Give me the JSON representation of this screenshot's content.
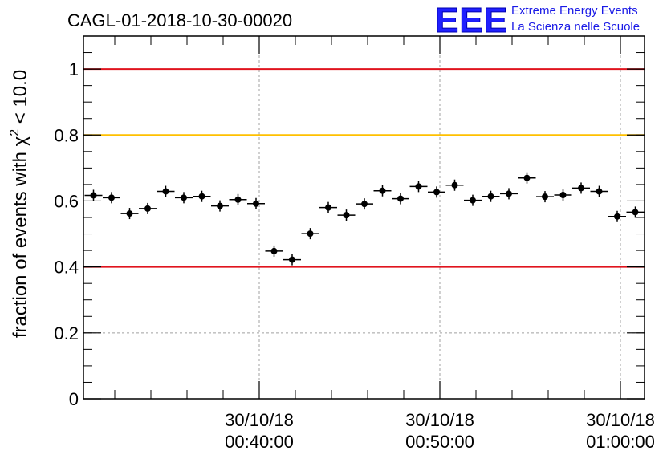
{
  "chart_data": {
    "type": "scatter",
    "title": "CAGL-01-2018-10-30-00020",
    "ylabel": "fraction of events with χ",
    "ylabel_sup": "2",
    "ylabel_tail": " < 10.0",
    "xlabel": "",
    "ylim": [
      0,
      1.1
    ],
    "yticks": [
      "0",
      "0.2",
      "0.4",
      "0.6",
      "0.8",
      "1"
    ],
    "xticks": [
      {
        "date": "30/10/18",
        "time": "00:40:00"
      },
      {
        "date": "30/10/18",
        "time": "00:50:00"
      },
      {
        "date": "30/10/18",
        "time": "01:00:00"
      }
    ],
    "grid": true,
    "reference_lines": [
      {
        "y": 1.0,
        "color": "#e0141e"
      },
      {
        "y": 0.8,
        "color": "#ffc000"
      },
      {
        "y": 0.4,
        "color": "#e0141e"
      }
    ],
    "points": [
      0.617,
      0.61,
      0.562,
      0.577,
      0.629,
      0.61,
      0.614,
      0.585,
      0.604,
      0.592,
      0.448,
      0.422,
      0.501,
      0.58,
      0.557,
      0.591,
      0.631,
      0.607,
      0.644,
      0.627,
      0.648,
      0.602,
      0.614,
      0.622,
      0.67,
      0.613,
      0.618,
      0.639,
      0.629,
      0.553,
      0.566
    ]
  },
  "logo": {
    "mark": "EEE",
    "line1": "Extreme Energy Events",
    "line2": "La Scienza nelle Scuole"
  }
}
